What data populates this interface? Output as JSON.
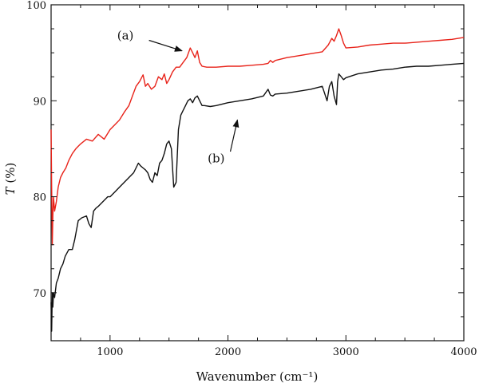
{
  "chart_data": {
    "type": "line",
    "xlabel": "Wavenumber (cm⁻¹)",
    "ylabel_var": "T",
    "ylabel_unit": " (%)",
    "xlim": [
      500,
      4000
    ],
    "ylim": [
      65,
      100
    ],
    "xticks": [
      1000,
      2000,
      3000,
      4000
    ],
    "yticks": [
      70,
      80,
      90,
      100
    ],
    "grid": false,
    "series": [
      {
        "name": "(a)",
        "color": "#e8231a",
        "x": [
          500,
          505,
          510,
          515,
          520,
          530,
          545,
          560,
          580,
          600,
          625,
          650,
          680,
          710,
          750,
          800,
          850,
          900,
          950,
          1000,
          1040,
          1080,
          1120,
          1160,
          1190,
          1220,
          1250,
          1280,
          1300,
          1320,
          1350,
          1380,
          1410,
          1440,
          1460,
          1480,
          1500,
          1530,
          1560,
          1590,
          1620,
          1650,
          1680,
          1700,
          1720,
          1740,
          1760,
          1780,
          1820,
          1900,
          2000,
          2100,
          2200,
          2300,
          2340,
          2360,
          2380,
          2400,
          2500,
          2600,
          2700,
          2800,
          2850,
          2880,
          2900,
          2920,
          2940,
          2960,
          2980,
          3000,
          3100,
          3200,
          3300,
          3400,
          3500,
          3600,
          3700,
          3800,
          3900,
          4000
        ],
        "y": [
          87.0,
          81.0,
          75.0,
          78.0,
          80.0,
          78.5,
          79.5,
          81.0,
          82.0,
          82.5,
          83.0,
          83.8,
          84.5,
          85.0,
          85.5,
          86.0,
          85.8,
          86.5,
          86.0,
          87.0,
          87.5,
          88.0,
          88.8,
          89.5,
          90.5,
          91.5,
          92.0,
          92.7,
          91.5,
          91.8,
          91.2,
          91.5,
          92.5,
          92.2,
          92.8,
          91.8,
          92.2,
          93.0,
          93.5,
          93.5,
          94.0,
          94.5,
          95.5,
          95.0,
          94.5,
          95.2,
          94.0,
          93.6,
          93.5,
          93.5,
          93.6,
          93.6,
          93.7,
          93.8,
          93.9,
          94.2,
          94.0,
          94.2,
          94.5,
          94.7,
          94.9,
          95.1,
          95.8,
          96.5,
          96.2,
          96.8,
          97.5,
          96.8,
          96.0,
          95.5,
          95.6,
          95.8,
          95.9,
          96.0,
          96.0,
          96.1,
          96.2,
          96.3,
          96.4,
          96.6
        ]
      },
      {
        "name": "(b)",
        "color": "#111111",
        "x": [
          500,
          505,
          510,
          515,
          520,
          530,
          545,
          560,
          580,
          600,
          620,
          650,
          680,
          700,
          730,
          760,
          800,
          820,
          840,
          860,
          880,
          900,
          940,
          980,
          1000,
          1040,
          1080,
          1120,
          1160,
          1200,
          1240,
          1260,
          1280,
          1300,
          1320,
          1340,
          1360,
          1380,
          1400,
          1420,
          1440,
          1460,
          1480,
          1500,
          1520,
          1540,
          1560,
          1580,
          1600,
          1620,
          1640,
          1660,
          1680,
          1700,
          1720,
          1740,
          1760,
          1780,
          1800,
          1850,
          1900,
          2000,
          2100,
          2200,
          2300,
          2340,
          2360,
          2380,
          2400,
          2500,
          2600,
          2700,
          2800,
          2840,
          2860,
          2880,
          2900,
          2920,
          2930,
          2940,
          2960,
          2980,
          3000,
          3100,
          3200,
          3300,
          3400,
          3500,
          3600,
          3700,
          3800,
          3900,
          4000
        ],
        "y": [
          69.0,
          66.0,
          70.0,
          68.5,
          70.0,
          69.5,
          71.0,
          71.5,
          72.5,
          73.0,
          73.8,
          74.5,
          74.5,
          75.5,
          77.5,
          77.8,
          78.0,
          77.2,
          76.8,
          78.5,
          78.8,
          79.0,
          79.5,
          80.0,
          80.0,
          80.5,
          81.0,
          81.5,
          82.0,
          82.5,
          83.5,
          83.2,
          83.0,
          82.8,
          82.5,
          81.8,
          81.5,
          82.5,
          82.2,
          83.5,
          83.8,
          84.5,
          85.5,
          85.8,
          85.0,
          81.0,
          81.5,
          87.0,
          88.5,
          89.0,
          89.5,
          90.0,
          90.2,
          89.8,
          90.3,
          90.5,
          90.0,
          89.5,
          89.5,
          89.4,
          89.5,
          89.8,
          90.0,
          90.2,
          90.5,
          91.2,
          90.6,
          90.5,
          90.7,
          90.8,
          91.0,
          91.2,
          91.5,
          90.0,
          91.5,
          92.0,
          90.5,
          89.6,
          92.0,
          92.8,
          92.5,
          92.2,
          92.4,
          92.8,
          93.0,
          93.2,
          93.3,
          93.5,
          93.6,
          93.6,
          93.7,
          93.8,
          93.9
        ]
      }
    ],
    "annotations": [
      {
        "label": "(a)",
        "tx": 1130,
        "ty": 96.4,
        "ax1": 1330,
        "ay1": 96.3,
        "ax2": 1610,
        "ay2": 95.2
      },
      {
        "label": "(b)",
        "tx": 1900,
        "ty": 83.6,
        "ax1": 2020,
        "ay1": 84.7,
        "ax2": 2080,
        "ay2": 88.0
      }
    ]
  }
}
